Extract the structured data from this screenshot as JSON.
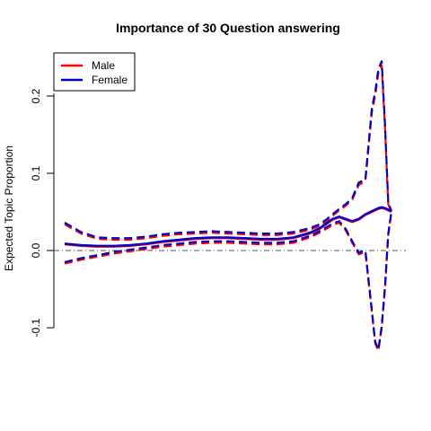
{
  "chart_data": {
    "type": "line",
    "title": "Importance of 30 Question answering",
    "ylabel": "Expected Topic Proportion",
    "xlabel": "",
    "ylim": [
      -0.1,
      0.25
    ],
    "y_ticks": [
      -0.1,
      0.0,
      0.1,
      0.2
    ],
    "y_tick_labels": [
      "-0.1",
      "0.0",
      "0.1",
      "0.2"
    ],
    "reference_line": {
      "y": 0,
      "style": "dash-dot",
      "color": "#555555"
    },
    "legend": {
      "position": "top-left",
      "entries": [
        {
          "label": "Male",
          "color": "#ff0000"
        },
        {
          "label": "Female",
          "color": "#0000cc"
        }
      ]
    },
    "x": [
      0,
      0.05,
      0.1,
      0.15,
      0.2,
      0.25,
      0.3,
      0.35,
      0.4,
      0.45,
      0.5,
      0.55,
      0.6,
      0.65,
      0.7,
      0.75,
      0.78,
      0.8,
      0.82,
      0.84,
      0.86,
      0.88,
      0.9,
      0.92,
      0.94,
      0.95,
      0.96,
      0.97,
      0.98,
      0.99,
      1.0
    ],
    "series": [
      {
        "name": "Male",
        "color": "#ff0000",
        "mean": [
          0.008,
          0.006,
          0.005,
          0.005,
          0.006,
          0.008,
          0.011,
          0.013,
          0.015,
          0.016,
          0.016,
          0.015,
          0.014,
          0.014,
          0.016,
          0.022,
          0.028,
          0.034,
          0.04,
          0.043,
          0.04,
          0.037,
          0.04,
          0.046,
          0.05,
          0.052,
          0.054,
          0.055,
          0.054,
          0.052,
          0.05
        ],
        "upper": [
          0.034,
          0.022,
          0.015,
          0.014,
          0.014,
          0.016,
          0.019,
          0.021,
          0.022,
          0.023,
          0.022,
          0.021,
          0.02,
          0.02,
          0.022,
          0.027,
          0.032,
          0.038,
          0.045,
          0.052,
          0.058,
          0.066,
          0.085,
          0.09,
          0.18,
          0.2,
          0.23,
          0.24,
          0.16,
          0.06,
          0.05
        ],
        "lower": [
          -0.017,
          -0.012,
          -0.008,
          -0.004,
          -0.001,
          0.002,
          0.005,
          0.007,
          0.009,
          0.01,
          0.01,
          0.009,
          0.008,
          0.008,
          0.01,
          0.017,
          0.023,
          0.028,
          0.033,
          0.036,
          0.026,
          0.01,
          -0.005,
          -0.002,
          -0.08,
          -0.12,
          -0.13,
          -0.1,
          -0.05,
          0.02,
          0.05
        ]
      },
      {
        "name": "Female",
        "color": "#0000cc",
        "mean": [
          0.009,
          0.007,
          0.006,
          0.006,
          0.007,
          0.009,
          0.012,
          0.014,
          0.016,
          0.017,
          0.017,
          0.016,
          0.015,
          0.015,
          0.017,
          0.023,
          0.029,
          0.035,
          0.041,
          0.044,
          0.041,
          0.038,
          0.041,
          0.047,
          0.051,
          0.053,
          0.055,
          0.056,
          0.055,
          0.053,
          0.051
        ],
        "upper": [
          0.036,
          0.024,
          0.017,
          0.016,
          0.016,
          0.018,
          0.021,
          0.023,
          0.024,
          0.025,
          0.024,
          0.023,
          0.022,
          0.022,
          0.024,
          0.029,
          0.034,
          0.04,
          0.047,
          0.054,
          0.06,
          0.068,
          0.088,
          0.092,
          0.185,
          0.205,
          0.235,
          0.245,
          0.165,
          0.062,
          0.051
        ],
        "lower": [
          -0.015,
          -0.01,
          -0.006,
          -0.002,
          0.001,
          0.004,
          0.007,
          0.009,
          0.011,
          0.012,
          0.012,
          0.011,
          0.01,
          0.01,
          0.012,
          0.019,
          0.025,
          0.03,
          0.035,
          0.038,
          0.028,
          0.012,
          -0.003,
          0.0,
          -0.078,
          -0.118,
          -0.128,
          -0.098,
          -0.048,
          0.022,
          0.051
        ]
      }
    ]
  }
}
